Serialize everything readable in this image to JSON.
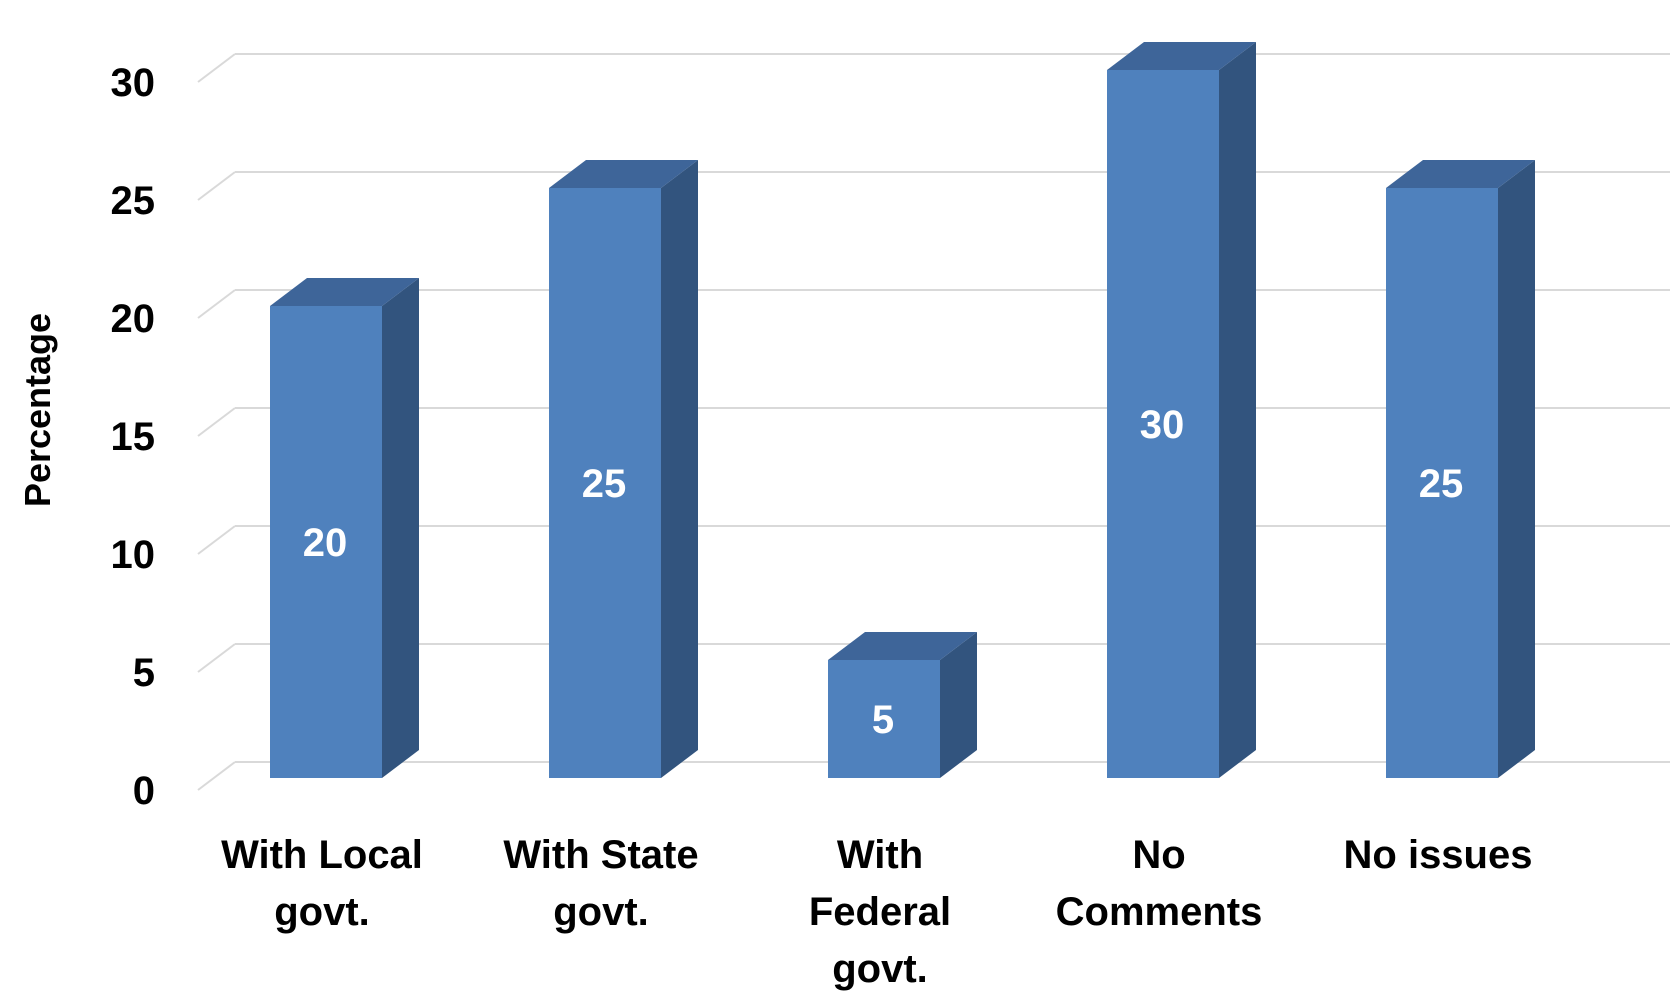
{
  "chart_data": {
    "type": "bar",
    "three_d": true,
    "categories": [
      [
        "With Local",
        "govt."
      ],
      [
        "With State",
        "govt."
      ],
      [
        "With",
        "Federal",
        "govt."
      ],
      [
        "No",
        "Comments"
      ],
      [
        "No issues"
      ]
    ],
    "values": [
      20,
      25,
      5,
      30,
      25
    ],
    "data_labels": [
      "20",
      "25",
      "5",
      "30",
      "25"
    ],
    "title": "",
    "xlabel": "",
    "ylabel": "Percentage",
    "ylim": [
      0,
      30
    ],
    "yticks": [
      0,
      5,
      10,
      15,
      20,
      25,
      30
    ],
    "ytick_labels": [
      "0",
      "5",
      "10",
      "15",
      "20",
      "25",
      "30"
    ],
    "grid": true,
    "legend": "none",
    "colors": {
      "bar_front": "#4F81BD",
      "bar_side": "#32547E",
      "bar_top": "#3E6599",
      "grid": "#D9D9D9",
      "data_label": "#FFFFFF"
    }
  }
}
